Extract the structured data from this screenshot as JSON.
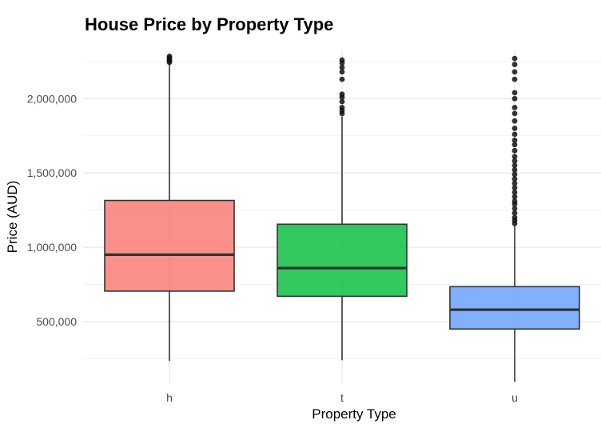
{
  "chart_data": {
    "type": "boxplot",
    "title": "House Price by Property Type",
    "xlabel": "Property Type",
    "ylabel": "Price (AUD)",
    "ylim": [
      80000,
      2330000
    ],
    "y_ticks": [
      500000,
      1000000,
      1500000,
      2000000
    ],
    "y_tick_labels": [
      "500,000",
      "1,000,000",
      "1,500,000",
      "2,000,000"
    ],
    "grid": true,
    "legend": "none",
    "categories": [
      "h",
      "t",
      "u"
    ],
    "boxes": [
      {
        "category": "h",
        "color": "#F8766D",
        "whisker_low": 235000,
        "q1": 705000,
        "median": 950000,
        "q3": 1315000,
        "whisker_high": 2235000,
        "outliers": [
          2245000,
          2255000,
          2265000,
          2275000,
          2285000
        ]
      },
      {
        "category": "t",
        "color": "#00BA38",
        "whisker_low": 240000,
        "q1": 670000,
        "median": 860000,
        "q3": 1155000,
        "whisker_high": 1880000,
        "outliers": [
          1900000,
          1920000,
          1940000,
          1980000,
          2010000,
          2030000,
          2130000,
          2180000,
          2210000,
          2240000,
          2260000
        ]
      },
      {
        "category": "u",
        "color": "#619CFF",
        "whisker_low": 95000,
        "q1": 450000,
        "median": 580000,
        "q3": 735000,
        "whisker_high": 1150000,
        "outliers": [
          1160000,
          1180000,
          1200000,
          1230000,
          1260000,
          1290000,
          1310000,
          1340000,
          1370000,
          1400000,
          1430000,
          1460000,
          1490000,
          1520000,
          1550000,
          1580000,
          1610000,
          1650000,
          1690000,
          1720000,
          1760000,
          1800000,
          1850000,
          1900000,
          1940000,
          2000000,
          2040000,
          2130000,
          2180000,
          2230000,
          2270000
        ]
      }
    ]
  }
}
